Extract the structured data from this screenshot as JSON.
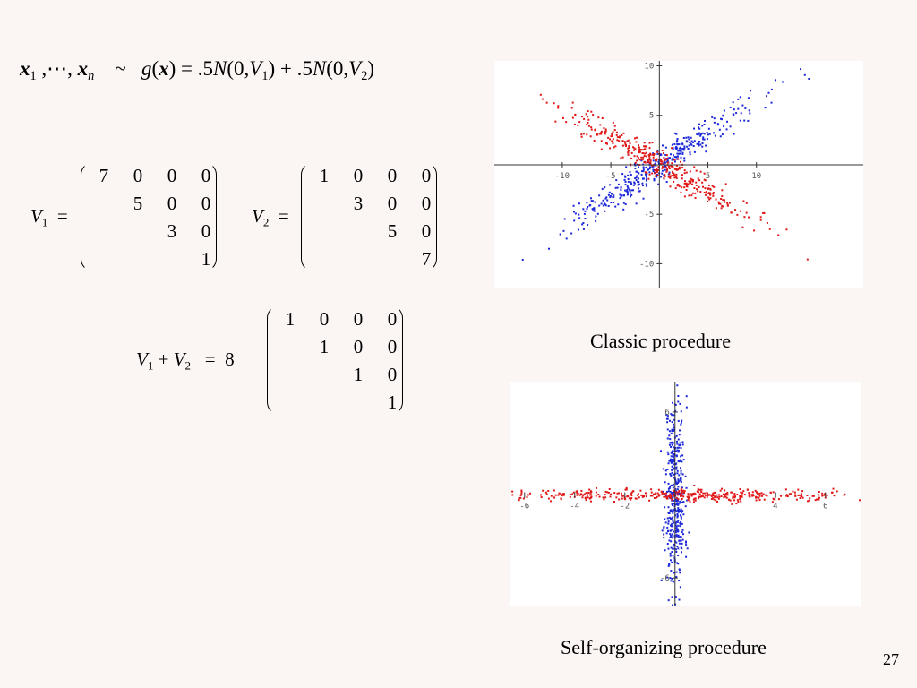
{
  "formula": {
    "x1": "x",
    "x1_sub": "1",
    "dots": " ,⋯, ",
    "xn": "x",
    "xn_sub": "n",
    "tilde": "~",
    "g": "g",
    "open": "(",
    "x": "x",
    "close": ")",
    "eq": " = .5",
    "N1": "N",
    "args1a": "(0,",
    "V1": "V",
    "V1_sub": "1",
    "args1b": ")",
    "plus": " + .5",
    "N2": "N",
    "args2a": "(0,",
    "V2": "V",
    "V2_sub": "2",
    "args2b": ")"
  },
  "matrices": {
    "v1": {
      "name": "V",
      "sub": "1",
      "eq": "=",
      "rows": [
        [
          "7",
          "0",
          "0",
          "0"
        ],
        [
          "",
          "5",
          "0",
          "0"
        ],
        [
          "",
          "",
          "3",
          "0"
        ],
        [
          "",
          "",
          "",
          "1"
        ]
      ]
    },
    "v2": {
      "name": "V",
      "sub": "2",
      "eq": "=",
      "rows": [
        [
          "1",
          "0",
          "0",
          "0"
        ],
        [
          "",
          "3",
          "0",
          "0"
        ],
        [
          "",
          "",
          "5",
          "0"
        ],
        [
          "",
          "",
          "",
          "7"
        ]
      ]
    },
    "sum": {
      "left_name": "V",
      "left_sub": "1",
      "plus": "+",
      "right_name": "V",
      "right_sub": "2",
      "eq": "=",
      "scalar": "8",
      "rows": [
        [
          "1",
          "0",
          "0",
          "0"
        ],
        [
          "",
          "1",
          "0",
          "0"
        ],
        [
          "",
          "",
          "1",
          "0"
        ],
        [
          "",
          "",
          "",
          "1"
        ]
      ]
    }
  },
  "plots": {
    "classic": {
      "caption": "Classic procedure",
      "x_ticks": [
        "-10",
        "-5",
        "5",
        "10"
      ],
      "y_ticks": [
        "10",
        "5",
        "-5",
        "-10"
      ],
      "x_tick_values": [
        -10,
        -5,
        5,
        10
      ],
      "y_tick_values": [
        10,
        5,
        -5,
        -10
      ],
      "xlim": [
        -17,
        21
      ],
      "ylim": [
        -12.5,
        10.5
      ],
      "colors": {
        "red": "#e01818",
        "blue": "#1c28d8",
        "axis": "#333333"
      }
    },
    "self_org": {
      "caption": "Self-organizing procedure",
      "x_ticks": [
        "-6",
        "-4",
        "-2",
        "4",
        "6"
      ],
      "y_ticks": [
        "6",
        "-6"
      ],
      "x_tick_values": [
        -6,
        -4,
        -2,
        4,
        6
      ],
      "y_tick_values": [
        6,
        -6
      ],
      "xlim": [
        -6.6,
        7.4
      ],
      "ylim": [
        -8,
        8.2
      ],
      "colors": {
        "red": "#e01818",
        "blue": "#1c28d8",
        "axis": "#333333"
      }
    }
  },
  "page_number": "27"
}
